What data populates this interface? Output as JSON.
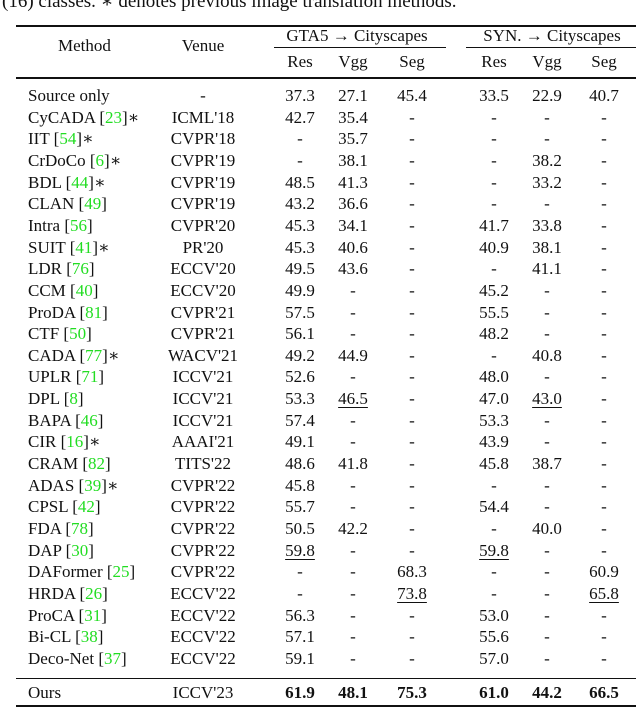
{
  "caption": "(16) classes. ∗ denotes previous image translation methods.",
  "header": {
    "method": "Method",
    "venue": "Venue",
    "groups": [
      "GTA5 → Cityscapes",
      "SYN. → Cityscapes"
    ],
    "subcols": [
      "Res",
      "Vgg",
      "Seg",
      "Res",
      "Vgg",
      "Seg"
    ]
  },
  "rows": [
    {
      "method": "Source only",
      "ref": "",
      "star": "",
      "venue": "-",
      "values": [
        "37.3",
        "27.1",
        "45.4",
        "33.5",
        "22.9",
        "40.7"
      ]
    },
    {
      "method": "CyCADA [",
      "ref": "23",
      "star": "]∗",
      "venue": "ICML'18",
      "values": [
        "42.7",
        "35.4",
        "-",
        "-",
        "-",
        "-"
      ]
    },
    {
      "method": "IIT [",
      "ref": "54",
      "star": "]∗",
      "venue": "CVPR'18",
      "values": [
        "-",
        "35.7",
        "-",
        "-",
        "-",
        "-"
      ]
    },
    {
      "method": "CrDoCo [",
      "ref": "6",
      "star": "]∗",
      "venue": "CVPR'19",
      "values": [
        "-",
        "38.1",
        "-",
        "-",
        "38.2",
        "-"
      ]
    },
    {
      "method": "BDL [",
      "ref": "44",
      "star": "]∗",
      "venue": "CVPR'19",
      "values": [
        "48.5",
        "41.3",
        "-",
        "-",
        "33.2",
        "-"
      ]
    },
    {
      "method": "CLAN [",
      "ref": "49",
      "star": "]",
      "venue": "CVPR'19",
      "values": [
        "43.2",
        "36.6",
        "-",
        "-",
        "-",
        "-"
      ]
    },
    {
      "method": "Intra [",
      "ref": "56",
      "star": "]",
      "venue": "CVPR'20",
      "values": [
        "45.3",
        "34.1",
        "-",
        "41.7",
        "33.8",
        "-"
      ]
    },
    {
      "method": "SUIT [",
      "ref": "41",
      "star": "]∗",
      "venue": "PR'20",
      "values": [
        "45.3",
        "40.6",
        "-",
        "40.9",
        "38.1",
        "-"
      ]
    },
    {
      "method": "LDR [",
      "ref": "76",
      "star": "]",
      "venue": "ECCV'20",
      "values": [
        "49.5",
        "43.6",
        "-",
        "-",
        "41.1",
        "-"
      ]
    },
    {
      "method": "CCM [",
      "ref": "40",
      "star": "]",
      "venue": "ECCV'20",
      "values": [
        "49.9",
        "-",
        "-",
        "45.2",
        "-",
        "-"
      ]
    },
    {
      "method": "ProDA [",
      "ref": "81",
      "star": "]",
      "venue": "CVPR'21",
      "values": [
        "57.5",
        "-",
        "-",
        "55.5",
        "-",
        "-"
      ]
    },
    {
      "method": "CTF [",
      "ref": "50",
      "star": "]",
      "venue": "CVPR'21",
      "values": [
        "56.1",
        "-",
        "-",
        "48.2",
        "-",
        "-"
      ]
    },
    {
      "method": "CADA [",
      "ref": "77",
      "star": "]∗",
      "venue": "WACV'21",
      "values": [
        "49.2",
        "44.9",
        "-",
        "-",
        "40.8",
        "-"
      ]
    },
    {
      "method": "UPLR [",
      "ref": "71",
      "star": "]",
      "venue": "ICCV'21",
      "values": [
        "52.6",
        "-",
        "-",
        "48.0",
        "-",
        "-"
      ]
    },
    {
      "method": "DPL [",
      "ref": "8",
      "star": "]",
      "venue": "ICCV'21",
      "values": [
        "53.3",
        "46.5",
        "-",
        "47.0",
        "43.0",
        "-"
      ],
      "underline": [
        1,
        4
      ]
    },
    {
      "method": "BAPA [",
      "ref": "46",
      "star": "]",
      "venue": "ICCV'21",
      "values": [
        "57.4",
        "-",
        "-",
        "53.3",
        "-",
        "-"
      ]
    },
    {
      "method": "CIR [",
      "ref": "16",
      "star": "]∗",
      "venue": "AAAI'21",
      "values": [
        "49.1",
        "-",
        "-",
        "43.9",
        "-",
        "-"
      ]
    },
    {
      "method": "CRAM [",
      "ref": "82",
      "star": "]",
      "venue": "TITS'22",
      "values": [
        "48.6",
        "41.8",
        "-",
        "45.8",
        "38.7",
        "-"
      ]
    },
    {
      "method": "ADAS [",
      "ref": "39",
      "star": "]∗",
      "venue": "CVPR'22",
      "values": [
        "45.8",
        "-",
        "-",
        "-",
        "-",
        "-"
      ]
    },
    {
      "method": "CPSL [",
      "ref": "42",
      "star": "]",
      "venue": "CVPR'22",
      "values": [
        "55.7",
        "-",
        "-",
        "54.4",
        "-",
        "-"
      ]
    },
    {
      "method": "FDA [",
      "ref": "78",
      "star": "]",
      "venue": "CVPR'22",
      "values": [
        "50.5",
        "42.2",
        "-",
        "-",
        "40.0",
        "-"
      ]
    },
    {
      "method": "DAP [",
      "ref": "30",
      "star": "]",
      "venue": "CVPR'22",
      "values": [
        "59.8",
        "-",
        "-",
        "59.8",
        "-",
        "-"
      ],
      "underline": [
        0,
        3
      ]
    },
    {
      "method": "DAFormer [",
      "ref": "25",
      "star": "]",
      "venue": "CVPR'22",
      "values": [
        "-",
        "-",
        "68.3",
        "-",
        "-",
        "60.9"
      ]
    },
    {
      "method": "HRDA [",
      "ref": "26",
      "star": "]",
      "venue": "ECCV'22",
      "values": [
        "-",
        "-",
        "73.8",
        "-",
        "-",
        "65.8"
      ],
      "underline": [
        2,
        5
      ]
    },
    {
      "method": "ProCA [",
      "ref": "31",
      "star": "]",
      "venue": "ECCV'22",
      "values": [
        "56.3",
        "-",
        "-",
        "53.0",
        "-",
        "-"
      ]
    },
    {
      "method": "Bi-CL [",
      "ref": "38",
      "star": "]",
      "venue": "ECCV'22",
      "values": [
        "57.1",
        "-",
        "-",
        "55.6",
        "-",
        "-"
      ]
    },
    {
      "method": "Deco-Net [",
      "ref": "37",
      "star": "]",
      "venue": "ECCV'22",
      "values": [
        "59.1",
        "-",
        "-",
        "57.0",
        "-",
        "-"
      ]
    }
  ],
  "ours": {
    "method": "Ours",
    "venue": "ICCV'23",
    "values": [
      "61.9",
      "48.1",
      "75.3",
      "61.0",
      "44.2",
      "66.5"
    ],
    "bold": true
  },
  "colors": {
    "reference_link": "#22dd22",
    "text": "#111111"
  }
}
